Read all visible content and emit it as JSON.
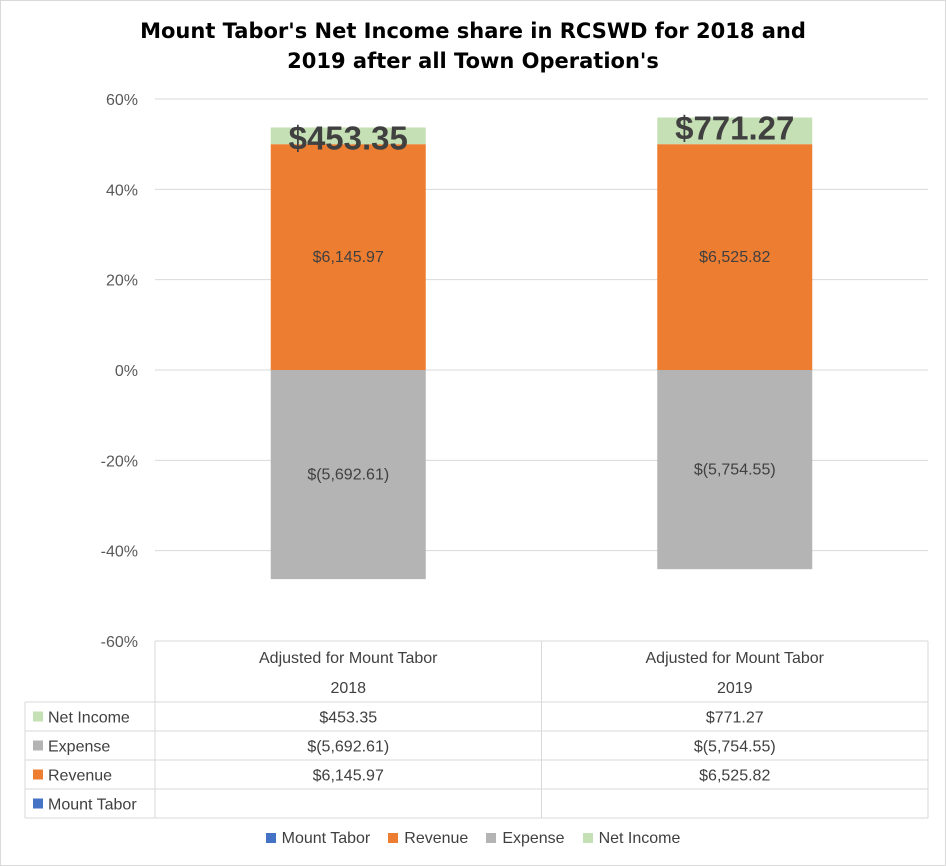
{
  "title_line1": "Mount Tabor's Net Income share in RCSWD for 2018 and",
  "title_line2": "2019 after all Town Operation's",
  "colors": {
    "Mount Tabor": "#4472c4",
    "Revenue": "#ed7d31",
    "Expense": "#b4b4b4",
    "Net Income": "#c5e0b4"
  },
  "legend": [
    "Mount Tabor",
    "Revenue",
    "Expense",
    "Net Income"
  ],
  "chart_data": {
    "type": "bar",
    "stacked": true,
    "ylim": [
      -0.6,
      0.6
    ],
    "yticks": [
      -0.6,
      -0.4,
      -0.2,
      0,
      0.2,
      0.4,
      0.6
    ],
    "ytick_labels": [
      "-60%",
      "-40%",
      "-20%",
      "0%",
      "20%",
      "40%",
      "60%"
    ],
    "categories": [
      {
        "line1": "Adjusted for Mount Tabor",
        "line2": "2018"
      },
      {
        "line1": "Adjusted for Mount Tabor",
        "line2": "2019"
      }
    ],
    "series": [
      {
        "name": "Mount Tabor",
        "values": [
          0,
          0
        ],
        "labels": [
          "",
          ""
        ]
      },
      {
        "name": "Revenue",
        "values": [
          0.5,
          0.5
        ],
        "labels": [
          "$6,145.97",
          "$6,525.82"
        ]
      },
      {
        "name": "Expense",
        "values": [
          -0.463,
          -0.441
        ],
        "labels": [
          "$(5,692.61)",
          "$(5,754.55)"
        ]
      },
      {
        "name": "Net Income",
        "values": [
          0.037,
          0.059
        ],
        "labels": [
          "$453.35",
          "$771.27"
        ]
      }
    ],
    "table_rows": [
      {
        "name": "Net Income",
        "values": [
          "$453.35",
          "$771.27"
        ]
      },
      {
        "name": "Expense",
        "values": [
          "$(5,692.61)",
          "$(5,754.55)"
        ]
      },
      {
        "name": "Revenue",
        "values": [
          "$6,145.97",
          "$6,525.82"
        ]
      },
      {
        "name": "Mount Tabor",
        "values": [
          "",
          ""
        ]
      }
    ],
    "grid": true,
    "legend_position": "bottom"
  }
}
